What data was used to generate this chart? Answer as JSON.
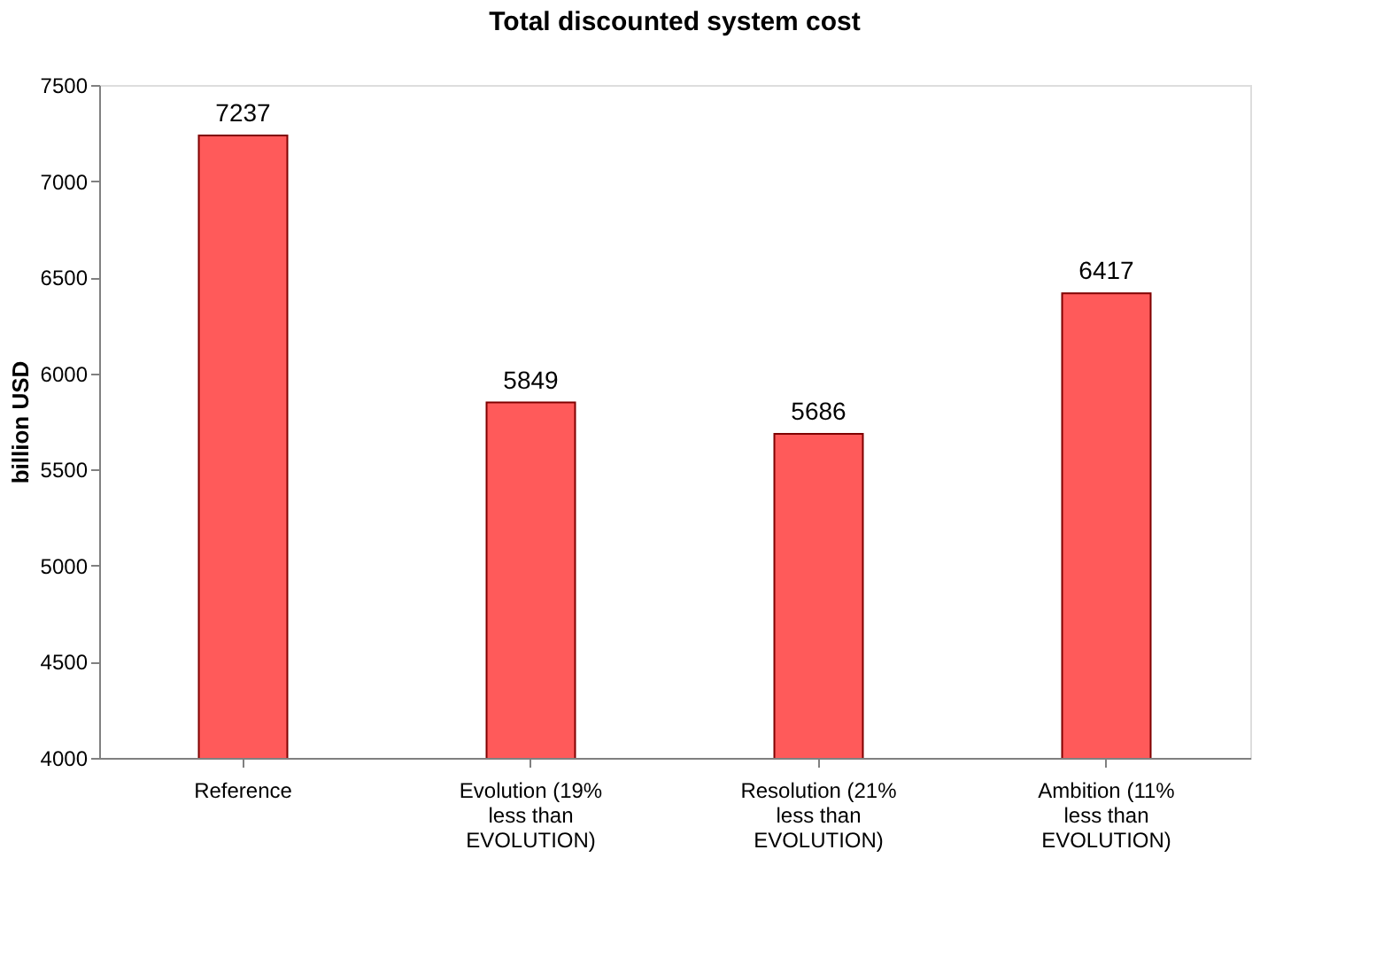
{
  "chart_data": {
    "type": "bar",
    "title": "Total discounted system cost",
    "ylabel": "billion USD",
    "categories": [
      "Reference",
      "Evolution (19%\nless than\nEVOLUTION)",
      "Resolution (21%\nless than\nEVOLUTION)",
      "Ambition (11%\nless than\nEVOLUTION)"
    ],
    "values": [
      7237,
      5849,
      5686,
      6417
    ],
    "color": "#ff5a5a",
    "ylim": [
      4000,
      7500
    ],
    "yticks": [
      4000,
      4500,
      5000,
      5500,
      6000,
      6500,
      7000,
      7500
    ],
    "grid": false,
    "data_labels": true
  }
}
